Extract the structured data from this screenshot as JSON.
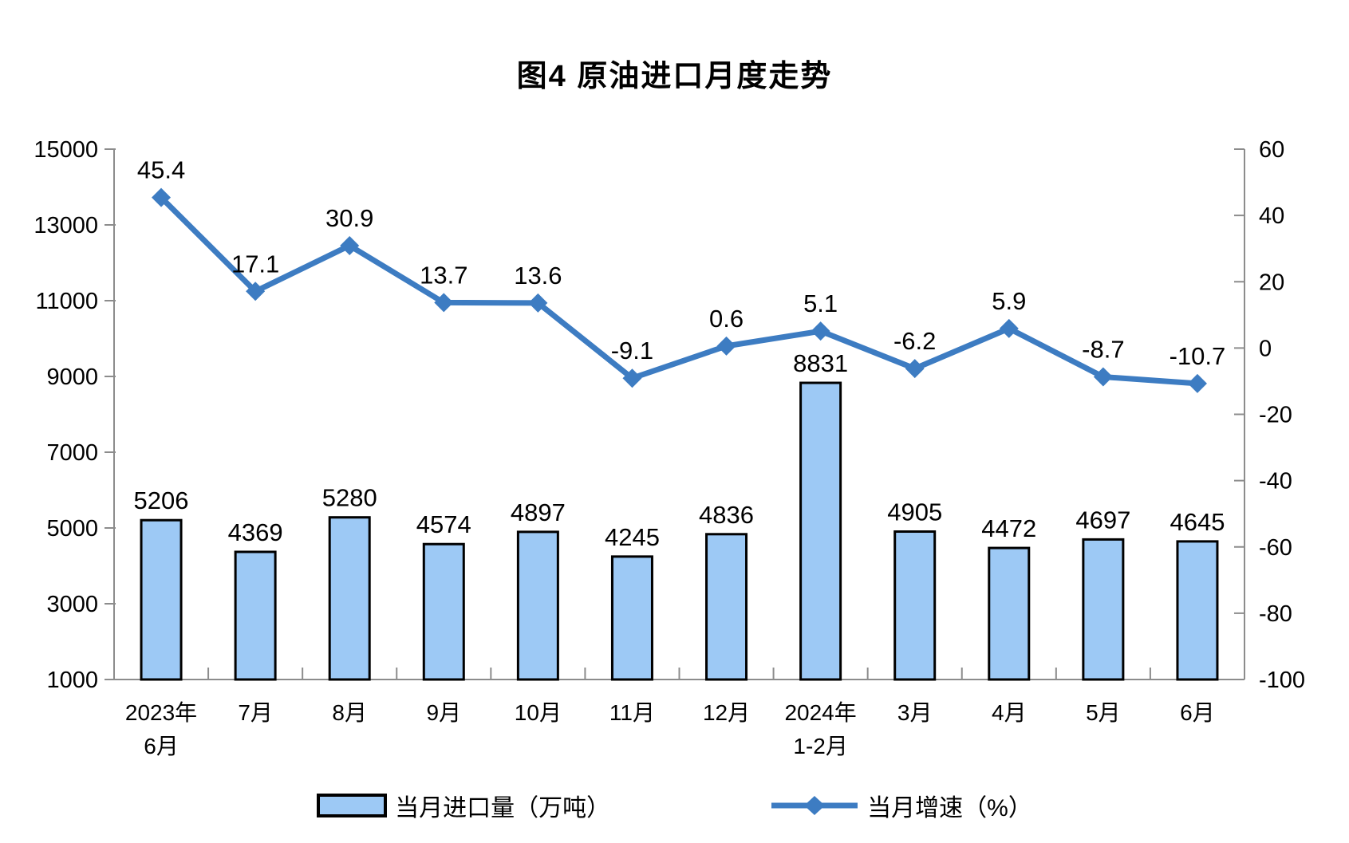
{
  "chart_data": {
    "type": "bar+line",
    "title": "图4 原油进口月度走势",
    "categories": [
      [
        "2023年",
        "6月"
      ],
      [
        "7月"
      ],
      [
        "8月"
      ],
      [
        "9月"
      ],
      [
        "10月"
      ],
      [
        "11月"
      ],
      [
        "12月"
      ],
      [
        "2024年",
        "1-2月"
      ],
      [
        "3月"
      ],
      [
        "4月"
      ],
      [
        "5月"
      ],
      [
        "6月"
      ]
    ],
    "series": [
      {
        "name": "当月进口量（万吨）",
        "type": "bar",
        "axis": "left",
        "values": [
          5206,
          4369,
          5280,
          4574,
          4897,
          4245,
          4836,
          8831,
          4905,
          4472,
          4697,
          4645
        ],
        "fill": "#9DC9F5",
        "stroke": "#000000"
      },
      {
        "name": "当月增速（%）",
        "type": "line",
        "axis": "right",
        "marker": "diamond",
        "values": [
          45.4,
          17.1,
          30.9,
          13.7,
          13.6,
          -9.1,
          0.6,
          5.1,
          -6.2,
          5.9,
          -8.7,
          -10.7
        ],
        "color": "#3D7CC2"
      }
    ],
    "left_axis": {
      "min": 1000,
      "max": 15000,
      "step": 2000,
      "ticks": [
        1000,
        3000,
        5000,
        7000,
        9000,
        11000,
        13000,
        15000
      ]
    },
    "right_axis": {
      "min": -100,
      "max": 60,
      "step": 20,
      "ticks": [
        -100,
        -80,
        -60,
        -40,
        -20,
        0,
        20,
        40,
        60
      ]
    },
    "grid": false,
    "legend_position": "bottom",
    "colors": {
      "axis": "#8C8C8C",
      "text": "#000000",
      "background": "#FFFFFF"
    }
  }
}
